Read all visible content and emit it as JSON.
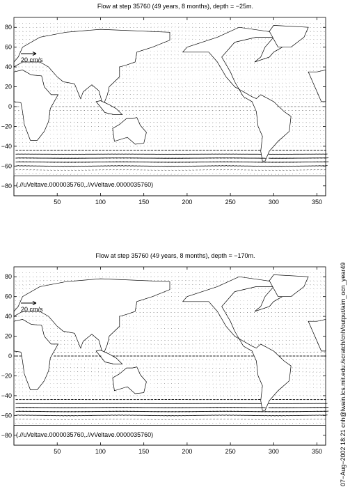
{
  "chart_data": [
    {
      "type": "quiver",
      "title": "Flow at step 35760 (49 years, 8 months), depth = −25m.",
      "xlim": [
        0,
        360
      ],
      "ylim": [
        -90,
        90
      ],
      "xticks": [
        "50",
        "100",
        "150",
        "200",
        "250",
        "300",
        "350"
      ],
      "xtick_values": [
        50,
        100,
        150,
        200,
        250,
        300,
        350
      ],
      "yticks": [
        "80",
        "60",
        "40",
        "20",
        "0",
        "−20",
        "−40",
        "−60",
        "−80"
      ],
      "ytick_values": [
        80,
        60,
        40,
        20,
        0,
        -20,
        -40,
        -60,
        -80
      ],
      "scale_label": "20 cm/s",
      "scale_speed_cms": 20,
      "files_label": "(.//uVeltave.0000035760,.//vVeltave.0000035760)",
      "seed": 7
    },
    {
      "type": "quiver",
      "title": "Flow at step 35760 (49 years, 8 months), depth = −170m.",
      "xlim": [
        0,
        360
      ],
      "ylim": [
        -90,
        90
      ],
      "xticks": [
        "50",
        "100",
        "150",
        "200",
        "250",
        "300",
        "350"
      ],
      "xtick_values": [
        50,
        100,
        150,
        200,
        250,
        300,
        350
      ],
      "yticks": [
        "80",
        "60",
        "40",
        "20",
        "0",
        "−20",
        "−40",
        "−60",
        "−80"
      ],
      "ytick_values": [
        80,
        60,
        40,
        20,
        0,
        -20,
        -40,
        -60,
        -80
      ],
      "scale_label": "20 cm/s",
      "scale_speed_cms": 20,
      "files_label": "(.//uVeltave.0000035760,.//vVeltave.0000035760)",
      "seed": 13
    }
  ],
  "side_label": "07−Aug−2002 18:21 cnh@lwain.lcs.mit.edu:/scratch/cnh/output/aim_ocn_year49",
  "colors": {
    "ink": "#000000",
    "background": "#ffffff"
  }
}
